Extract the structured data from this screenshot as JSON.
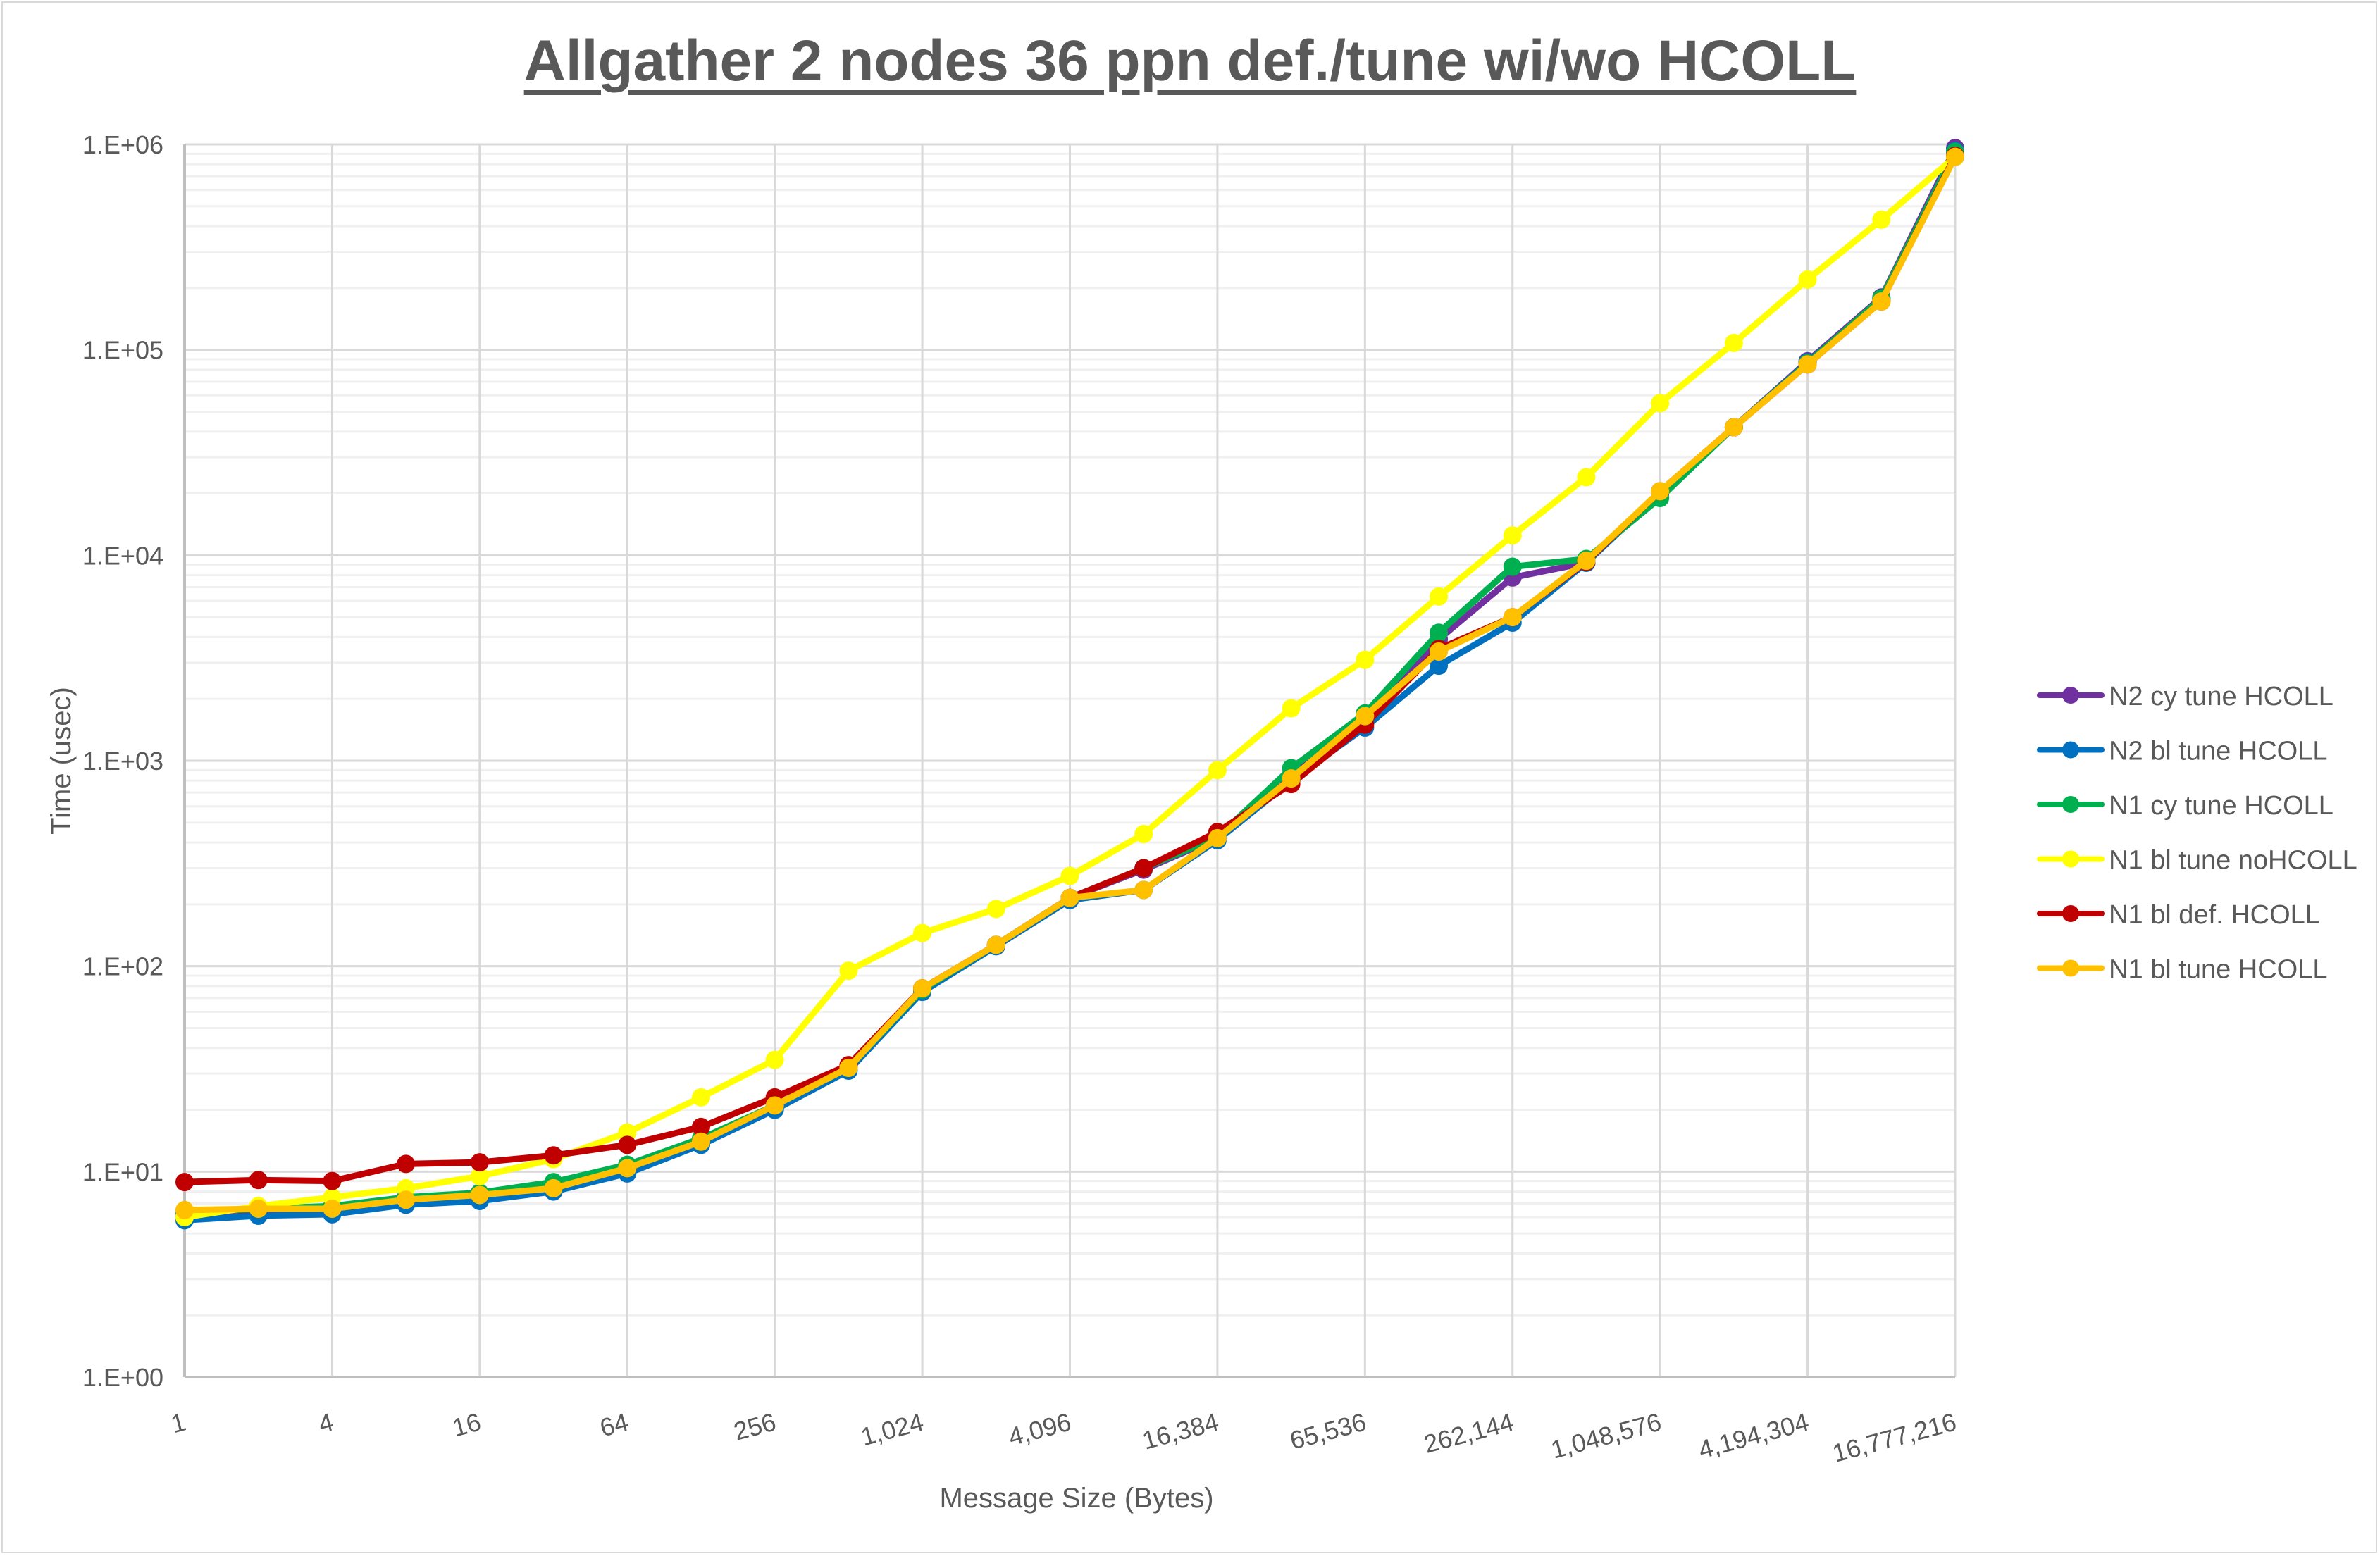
{
  "chart": {
    "title": "Allgather 2 nodes 36 ppn def./tune wi/wo HCOLL",
    "xlabel": "Message Size (Bytes)",
    "ylabel": "Time (usec)"
  },
  "chart_data": {
    "type": "line",
    "title": "Allgather 2 nodes 36 ppn def./tune wi/wo HCOLL",
    "xlabel": "Message Size (Bytes)",
    "ylabel": "Time (usec)",
    "xscale": "log2",
    "yscale": "log10",
    "ylim": [
      1,
      1000000
    ],
    "grid": true,
    "legend_position": "right",
    "x": [
      1,
      2,
      4,
      8,
      16,
      32,
      64,
      128,
      256,
      512,
      1024,
      2048,
      4096,
      8192,
      16384,
      32768,
      65536,
      131072,
      262144,
      524288,
      1048576,
      2097152,
      4194304,
      8388608,
      16777216
    ],
    "x_tick_labels": [
      "1",
      "4",
      "16",
      "64",
      "256",
      "1,024",
      "4,096",
      "16,384",
      "65,536",
      "262,144",
      "1,048,576",
      "4,194,304",
      "16,777,216"
    ],
    "y_tick_labels": [
      "1.E+00",
      "1.E+01",
      "1.E+02",
      "1.E+03",
      "1.E+04",
      "1.E+05",
      "1.E+06"
    ],
    "series": [
      {
        "name": "N2 cy tune HCOLL",
        "color": "#7030A0",
        "values": [
          6.0,
          6.3,
          6.5,
          7.2,
          7.6,
          8.5,
          10.5,
          14,
          21,
          32,
          78,
          127,
          215,
          295,
          420,
          860,
          1600,
          3900,
          7800,
          9200,
          20000,
          42000,
          88000,
          180000,
          960000
        ]
      },
      {
        "name": "N2 bl tune HCOLL",
        "color": "#0070C0",
        "values": [
          5.8,
          6.1,
          6.2,
          6.9,
          7.2,
          8.0,
          9.8,
          13.5,
          20,
          31,
          75,
          125,
          210,
          235,
          410,
          800,
          1450,
          2900,
          4700,
          9200,
          20000,
          42000,
          87000,
          175000,
          930000
        ]
      },
      {
        "name": "N1 cy tune HCOLL",
        "color": "#00B050",
        "values": [
          6.3,
          6.6,
          6.8,
          7.5,
          7.9,
          8.9,
          10.8,
          14.5,
          21,
          32,
          77,
          127,
          215,
          300,
          425,
          920,
          1700,
          4200,
          8800,
          9600,
          19000,
          42000,
          86000,
          178000,
          920000
        ]
      },
      {
        "name": "N1 bl tune noHCOLL",
        "color": "#FFFF00",
        "values": [
          6.0,
          6.8,
          7.5,
          8.3,
          9.5,
          11.5,
          15.5,
          23,
          35,
          95,
          145,
          190,
          275,
          440,
          900,
          1800,
          3100,
          6300,
          12500,
          24000,
          55000,
          108000,
          220000,
          430000,
          870000
        ]
      },
      {
        "name": "N1 bl def. HCOLL",
        "color": "#C00000",
        "values": [
          8.9,
          9.1,
          9.0,
          10.9,
          11.1,
          12.0,
          13.5,
          16.5,
          23,
          33,
          78,
          127,
          215,
          300,
          450,
          770,
          1500,
          3500,
          5000,
          9300,
          20500,
          42000,
          85000,
          172000,
          880000
        ]
      },
      {
        "name": "N1 bl tune HCOLL",
        "color": "#FFC000",
        "values": [
          6.5,
          6.6,
          6.6,
          7.3,
          7.7,
          8.3,
          10.4,
          14,
          21,
          32,
          78,
          127,
          215,
          235,
          420,
          820,
          1650,
          3400,
          5000,
          9400,
          20500,
          42000,
          85000,
          172000,
          870000
        ]
      }
    ]
  }
}
